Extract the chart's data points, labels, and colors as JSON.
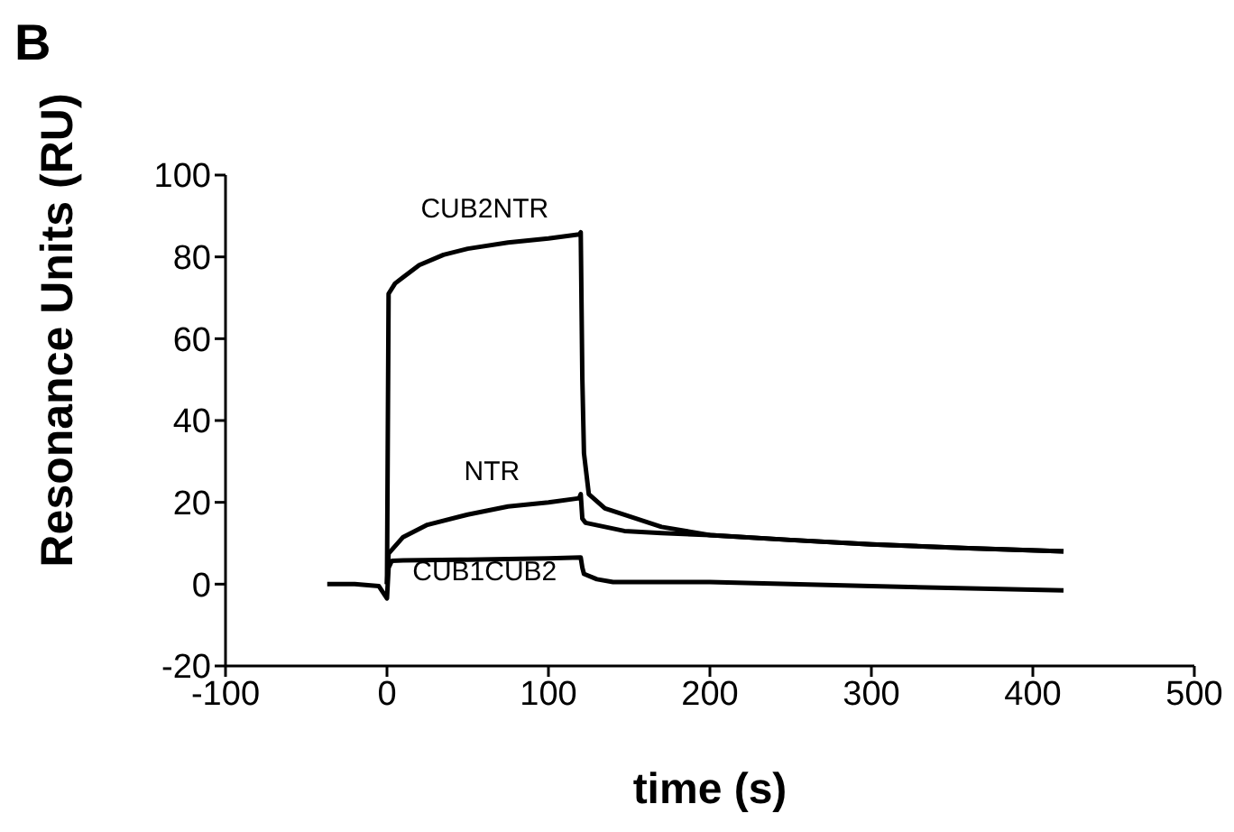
{
  "chart_data": {
    "type": "line",
    "title": "B",
    "xlabel": "time (s)",
    "ylabel": "Resonance Units (RU)",
    "xlim": [
      -100,
      500
    ],
    "xticks": [
      -100,
      0,
      100,
      200,
      300,
      400,
      500
    ],
    "ylim": [
      -20,
      100
    ],
    "yticks": [
      -20,
      0,
      20,
      40,
      60,
      80,
      100
    ],
    "grid": false,
    "legend": false,
    "marker": "none",
    "line_style": "solid",
    "series": [
      {
        "name": "CUB2NTR",
        "color": "#000000",
        "x": [
          0,
          1,
          5,
          10,
          20,
          35,
          50,
          75,
          100,
          119,
          120,
          121,
          122,
          125,
          135,
          147,
          170,
          200,
          250,
          300,
          360,
          419
        ],
        "values": [
          0,
          71,
          73.5,
          75,
          78,
          80.5,
          82,
          83.5,
          84.5,
          85.5,
          86,
          50,
          32,
          22,
          18.5,
          17,
          14,
          12,
          10.8,
          9.7,
          8.8,
          8
        ]
      },
      {
        "name": "NTR",
        "color": "#000000",
        "x": [
          0,
          1,
          10,
          25,
          50,
          75,
          100,
          119,
          120,
          121,
          123,
          135,
          147,
          170,
          200,
          250,
          300,
          360,
          419
        ],
        "values": [
          0,
          7.5,
          11.5,
          14.5,
          17,
          19,
          20,
          21,
          22,
          16,
          15,
          14,
          13,
          12.5,
          12,
          10.8,
          9.7,
          8.8,
          8
        ]
      },
      {
        "name": "CUB1CUB2",
        "color": "#000000",
        "x": [
          -37,
          -20,
          -5,
          0,
          1,
          3,
          10,
          50,
          100,
          120,
          121,
          122,
          130,
          140,
          200,
          300,
          419
        ],
        "values": [
          0,
          0,
          -0.5,
          -3.5,
          4,
          5.7,
          5.8,
          6,
          6.3,
          6.5,
          4,
          2.5,
          1.2,
          0.5,
          0.5,
          -0.5,
          -1.5
        ]
      }
    ]
  }
}
